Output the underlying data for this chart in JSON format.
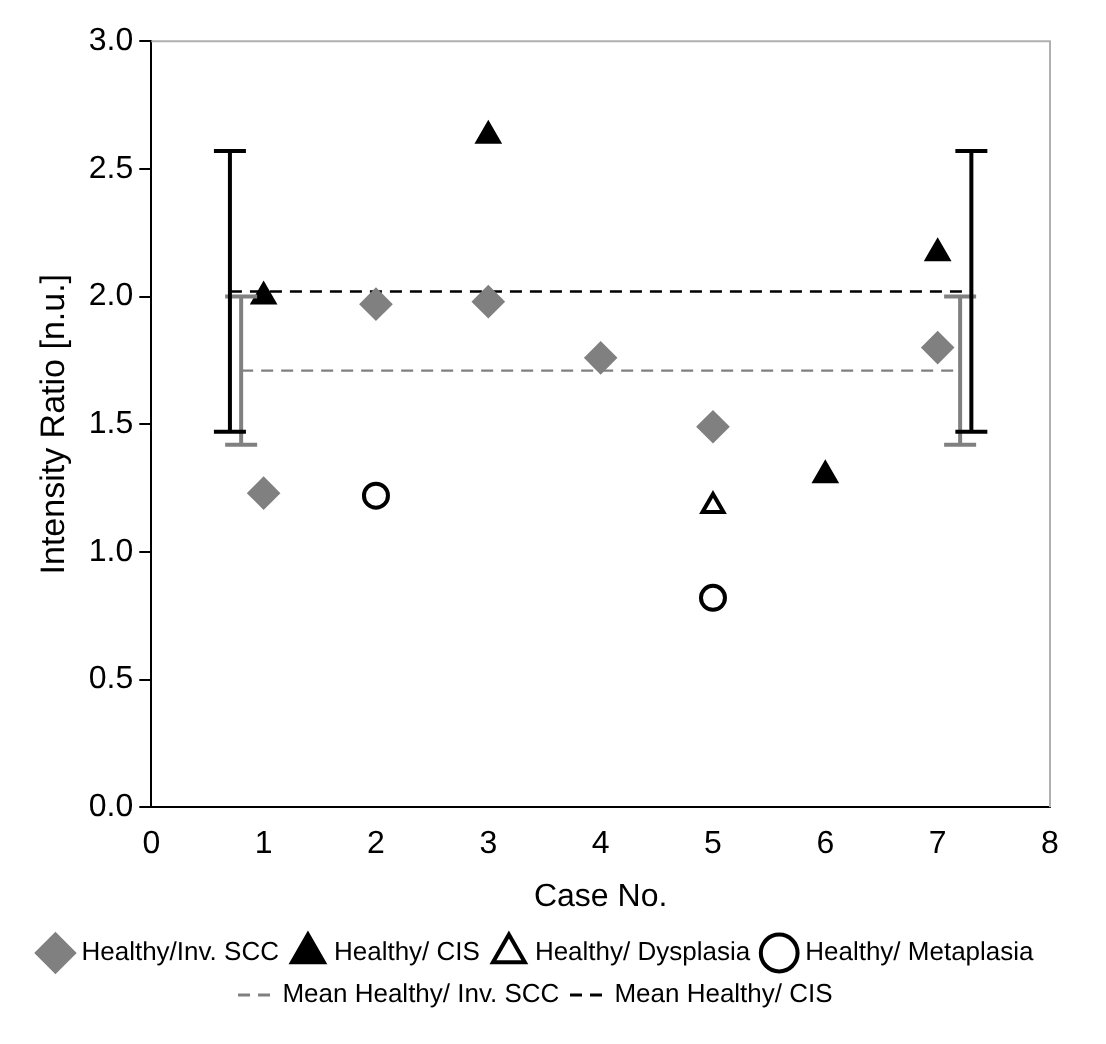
{
  "chart_data": {
    "type": "scatter",
    "xlabel": "Case No.",
    "ylabel": "Intensity Ratio [n.u.]",
    "xlim": [
      0,
      8
    ],
    "xticks": [
      0,
      1,
      2,
      3,
      4,
      5,
      6,
      7,
      8
    ],
    "ylim": [
      0,
      3
    ],
    "yticks": [
      {
        "value": 0,
        "label": "0.0"
      },
      {
        "value": 0.5,
        "label": "0.5"
      },
      {
        "value": 1,
        "label": "1.0"
      },
      {
        "value": 1.5,
        "label": "1.5"
      },
      {
        "value": 2,
        "label": "2.0"
      },
      {
        "value": 2.5,
        "label": "2.5"
      },
      {
        "value": 3,
        "label": "3.0"
      }
    ],
    "grid": false,
    "legend": "bottom",
    "series": [
      {
        "name": "Healthy/Inv. SCC",
        "color": "#808080",
        "marker": "diamond",
        "x": [
          1,
          2,
          3,
          4,
          5,
          7
        ],
        "values": [
          1.23,
          1.97,
          1.98,
          1.76,
          1.49,
          1.8
        ]
      },
      {
        "name": "Healthy/ CIS",
        "color": "#000000",
        "marker": "triangle",
        "x": [
          1,
          3,
          6,
          7
        ],
        "values": [
          2.0,
          2.63,
          1.3,
          2.17
        ]
      },
      {
        "name": "Healthy/ Dysplasia",
        "color": "#000000",
        "marker": "triangle",
        "x": [
          5
        ],
        "values": [
          1.18
        ]
      },
      {
        "name": "Healthy/ Metaplasia",
        "color": "#000000",
        "marker": "circle",
        "x": [
          2,
          5
        ],
        "values": [
          1.22,
          0.82
        ]
      },
      {
        "name": "Mean Healthy/ Inv. SCC",
        "type": "line",
        "color": "#808080",
        "marker": "none",
        "line_style": "dashed",
        "x": [
          0.8,
          7.2
        ],
        "values": [
          1.71,
          1.71
        ],
        "errors": [
          0.29,
          0.29
        ]
      },
      {
        "name": "Mean Healthy/ CIS",
        "type": "line",
        "color": "#000000",
        "marker": "none",
        "line_style": "dashed",
        "x": [
          0.7,
          7.3
        ],
        "values": [
          2.02,
          2.02
        ],
        "errors": [
          0.55,
          0.55
        ]
      }
    ]
  }
}
